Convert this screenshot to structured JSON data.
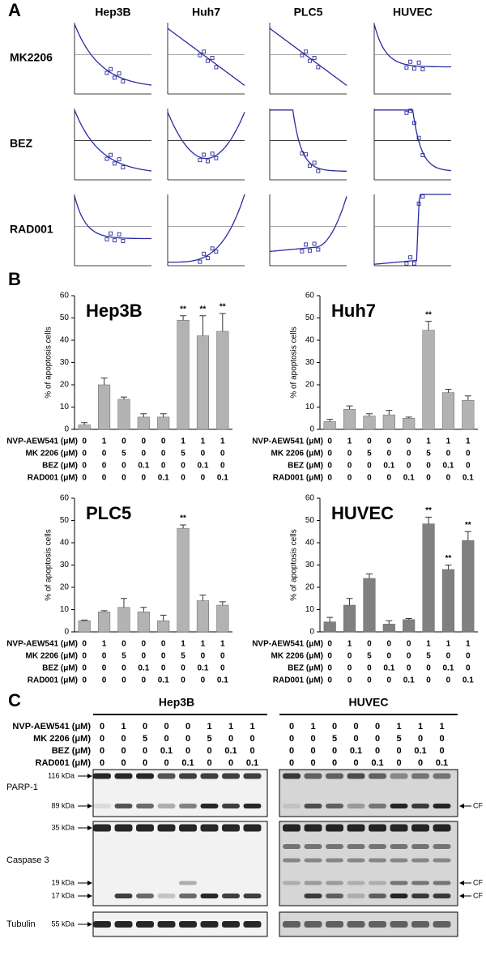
{
  "panel_labels": [
    "A",
    "B",
    "C"
  ],
  "panel_a": {
    "columns": [
      "Hep3B",
      "Huh7",
      "PLC5",
      "HUVEC"
    ],
    "rows": [
      "MK2206",
      "BEZ",
      "RAD001"
    ]
  },
  "conditions": {
    "labels": [
      "NVP-AEW541 (μM)",
      "MK 2206 (μM)",
      "BEZ (μM)",
      "RAD001 (μM)"
    ],
    "values": [
      [
        0,
        1,
        0,
        0,
        0,
        1,
        1,
        1
      ],
      [
        0,
        0,
        5,
        0,
        0,
        5,
        0,
        0
      ],
      [
        0,
        0,
        0,
        0.1,
        0,
        0,
        0.1,
        0
      ],
      [
        0,
        0,
        0,
        0,
        0.1,
        0,
        0,
        0.1
      ]
    ]
  },
  "chart_data": [
    {
      "type": "bar",
      "title": "Hep3B",
      "y_label": "% of apoptosis cells",
      "values": [
        2,
        20,
        13.5,
        5.5,
        5.5,
        49,
        42,
        44
      ],
      "errors": [
        1,
        3,
        1,
        1.5,
        1.5,
        2,
        9,
        8
      ],
      "significance": [
        null,
        null,
        null,
        null,
        null,
        "**",
        "**",
        "**"
      ],
      "color": "#b3b3b3",
      "ylim": [
        0,
        60
      ],
      "yticks": [
        0,
        10,
        20,
        30,
        40,
        50,
        60
      ]
    },
    {
      "type": "bar",
      "title": "Huh7",
      "y_label": "% of apoptosis cells",
      "values": [
        3.5,
        9,
        6,
        6.5,
        5,
        44.5,
        16.5,
        13
      ],
      "errors": [
        1,
        1.5,
        1,
        2,
        0.5,
        4,
        1.5,
        2
      ],
      "significance": [
        null,
        null,
        null,
        null,
        null,
        "**",
        null,
        null
      ],
      "color": "#b3b3b3",
      "ylim": [
        0,
        60
      ],
      "yticks": [
        0,
        10,
        20,
        30,
        40,
        50,
        60
      ]
    },
    {
      "type": "bar",
      "title": "PLC5",
      "y_label": "% of apoptosis cells",
      "values": [
        5,
        9,
        11,
        9,
        5,
        46.5,
        14,
        12
      ],
      "errors": [
        0.3,
        0.5,
        4,
        2,
        2.5,
        1.5,
        2.5,
        1.5
      ],
      "significance": [
        null,
        null,
        null,
        null,
        null,
        "**",
        null,
        null
      ],
      "color": "#b3b3b3",
      "ylim": [
        0,
        60
      ],
      "yticks": [
        0,
        10,
        20,
        30,
        40,
        50,
        60
      ]
    },
    {
      "type": "bar",
      "title": "HUVEC",
      "y_label": "% of apoptosis cells",
      "values": [
        4.5,
        12,
        24,
        3.5,
        5.5,
        48.5,
        28,
        41
      ],
      "errors": [
        2,
        3,
        2,
        1.5,
        0.5,
        3,
        2,
        4
      ],
      "significance": [
        null,
        null,
        null,
        null,
        null,
        "**",
        "**",
        "**"
      ],
      "color": "#808080",
      "ylim": [
        0,
        60
      ],
      "yticks": [
        0,
        10,
        20,
        30,
        40,
        50,
        60
      ]
    }
  ],
  "panel_c": {
    "cell_lines": [
      "Hep3B",
      "HUVEC"
    ],
    "blots": [
      "PARP-1",
      "Caspase 3",
      "Tubulin"
    ],
    "markers": [
      "116 kDa",
      "89 kDa",
      "35 kDa",
      "19 kDa",
      "17 kDa",
      "55 kDa"
    ],
    "cleaved_label": "CF"
  }
}
